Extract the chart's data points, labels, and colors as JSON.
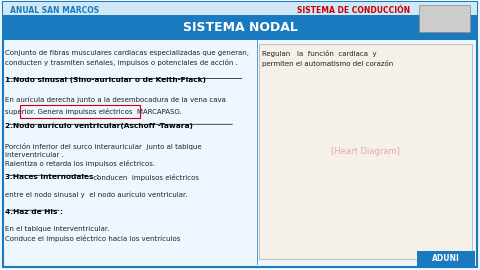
{
  "title": "SISTEMA NODAL",
  "header_label": "SISTEMA DE CONDUCCIÓN",
  "top_left_label": "ANUAL SAN MARCOS",
  "bottom_right_label": "ADUNI",
  "header_bg": "#1a7abf",
  "header_text_color": "#ffffff",
  "top_bar_bg": "#d0e8f5",
  "body_bg": "#eef7ff",
  "border_color": "#1a7abf",
  "red_label_color": "#cc0000",
  "text_color": "#222222",
  "bold_color": "#000000",
  "intro_left": "Conjunto de fibras musculares cardiacas especializadas que generan,\nconducten y trasmiten señales, impulsos o potenciales de acción .",
  "intro_right": "Regulan   la  función  cardiaca  y\npermiten el automatismo del corazón",
  "section1_title": "1.Nodo sinusal (Sino-auricular o de Keith-Flack)",
  "section1_body1": "En aurícula derecha junto a la desembocadura de la vena cava",
  "section1_body2": "superior. Genera impulsos eléctricos  MARCAPASO.",
  "section2_title": "2.Nodo aurículo ventricular(Aschoff -Tawara)",
  "section2_body": "Porción inferior del surco interauricular  junto al tabique\ninterventricular .\nRalentiza o retarda los impulsos eléctricos.",
  "section3_title": "3.Haces internodales :",
  "section3_body": " conducen  impulsos eléctricos entre el nodo sinusal y  el nodo aurículo ventricular.",
  "section4_title": "4.Haz de His :",
  "section4_body": "En el tabique interventricular.\nConduce el impulso eléctrico hacia los ventrículos"
}
